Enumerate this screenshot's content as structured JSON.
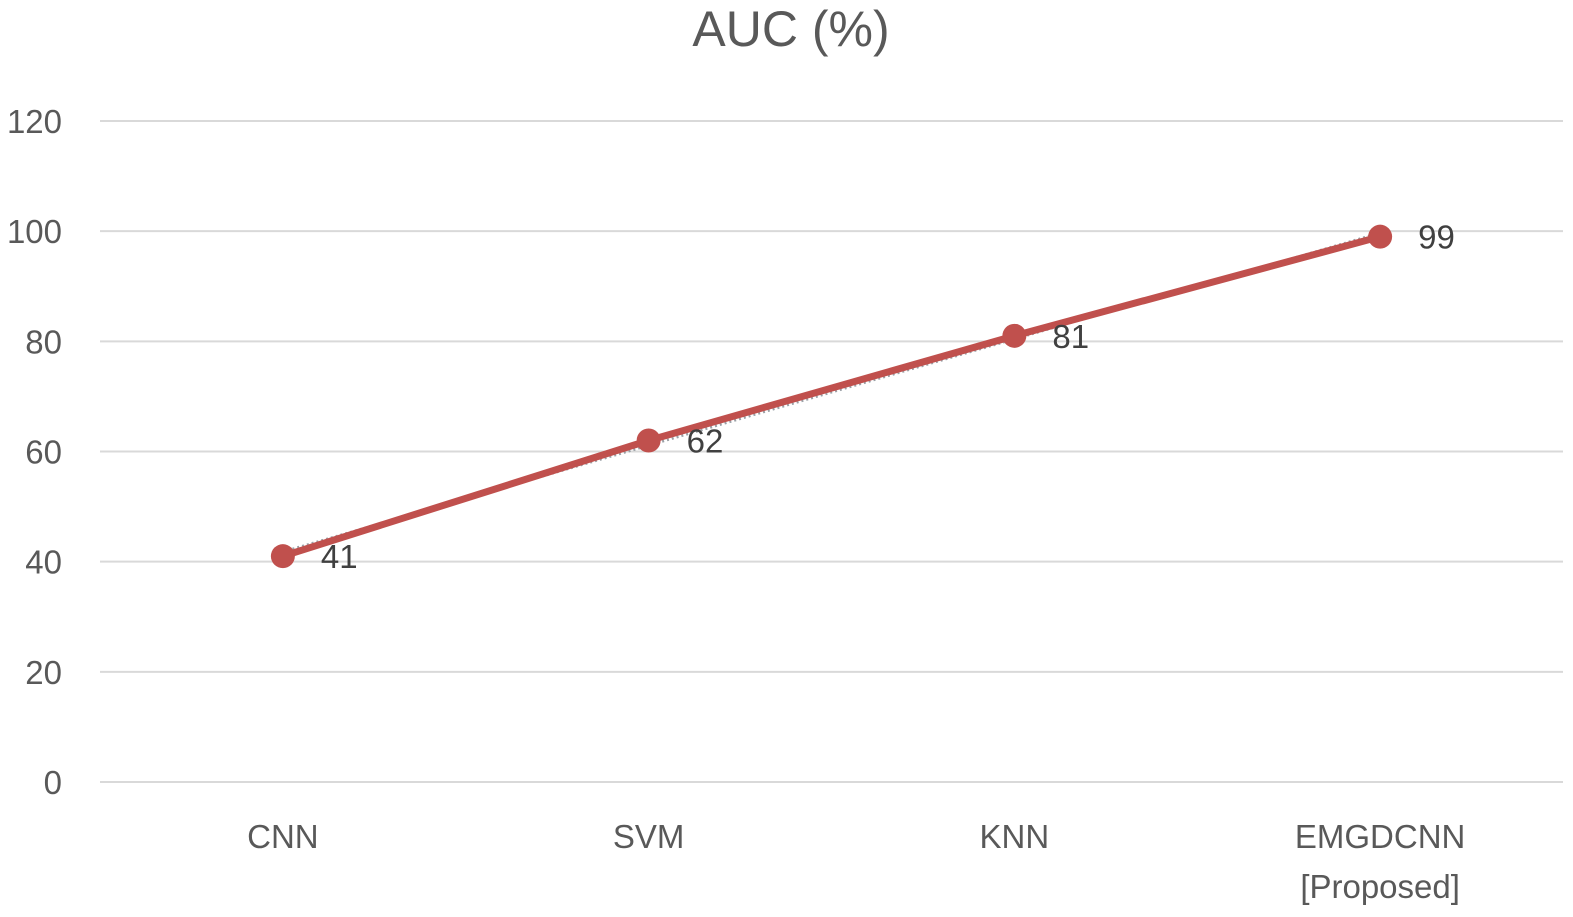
{
  "chart_data": {
    "type": "line",
    "title": "AUC (%)",
    "xlabel": "",
    "ylabel": "",
    "categories": [
      [
        "CNN"
      ],
      [
        "SVM"
      ],
      [
        "KNN"
      ],
      [
        "EMGDCNN",
        "[Proposed]"
      ]
    ],
    "series": [
      {
        "values": [
          41,
          62,
          81,
          99
        ],
        "color": "#c0504d",
        "trendline_color": "#9aa0a6"
      }
    ],
    "ylim": [
      0,
      120
    ],
    "yticks": [
      0,
      20,
      40,
      60,
      80,
      100,
      120
    ],
    "grid": "horizontal",
    "legend": "none",
    "data_labels": true
  },
  "colors": {
    "grid": "#d9d9d9",
    "axis_text": "#595959",
    "title_text": "#595959",
    "label_text": "#404040"
  }
}
